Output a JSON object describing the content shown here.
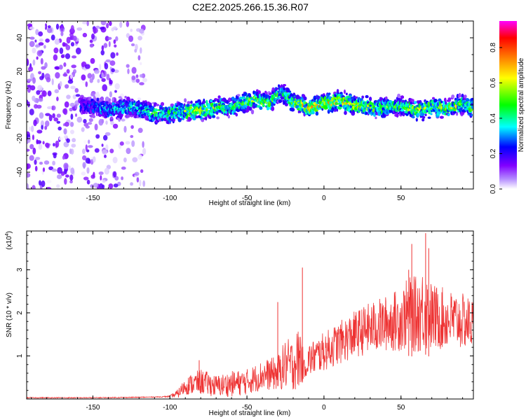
{
  "figure": {
    "title": "C2E2.2025.266.15.36.R07"
  },
  "chart_data": [
    {
      "type": "heatmap",
      "name": "spectrogram",
      "xlabel": "Height of straight line (km)",
      "ylabel": "Frequency (Hz)",
      "xlim": [
        -193,
        97
      ],
      "ylim": [
        -50,
        50
      ],
      "xticks": [
        -150,
        -100,
        -50,
        0,
        50
      ],
      "yticks": [
        -40,
        -20,
        0,
        20,
        40
      ],
      "colorbar": {
        "label": "Normalized spectral amplitude",
        "range": [
          0,
          0.95
        ],
        "ticks": [
          0.0,
          0.2,
          0.4,
          0.6,
          0.8
        ],
        "colormap": [
          "#ffffff",
          "#b48cff",
          "#8000ff",
          "#0000ff",
          "#00ffff",
          "#00ff00",
          "#ffff00",
          "#ff8000",
          "#ff0000",
          "#ff00ff"
        ]
      },
      "ridge": {
        "description_points_km": [
          -155,
          -140,
          -125,
          -110,
          -100,
          -80,
          -60,
          -45,
          -35,
          -28,
          -20,
          -10,
          0,
          10,
          20,
          30,
          40,
          50,
          60,
          70,
          80,
          90,
          97
        ],
        "frequency_hz": [
          0,
          -3,
          -1,
          -5,
          -5,
          -3,
          -1,
          3,
          1,
          8,
          2,
          -2,
          1,
          2,
          0,
          -1,
          -2,
          0,
          -3,
          -1,
          -2,
          0,
          -2
        ],
        "peak_amplitude": [
          0.35,
          0.45,
          0.5,
          0.55,
          0.6,
          0.75,
          0.6,
          0.7,
          0.65,
          0.5,
          0.7,
          0.8,
          0.85,
          0.8,
          0.8,
          0.7,
          0.65,
          0.6,
          0.75,
          0.7,
          0.7,
          0.65,
          0.6
        ]
      },
      "noise_region_km": [
        -193,
        -115
      ]
    },
    {
      "type": "line",
      "name": "snr",
      "xlabel": "Height of straight line (km)",
      "ylabel": "SNR (10 * v/v)",
      "yscale_label": "(x10",
      "yscale_exp": "4",
      "xlim": [
        -193,
        97
      ],
      "ylim": [
        0,
        3.9
      ],
      "xticks": [
        -150,
        -100,
        -50,
        0,
        50
      ],
      "yticks": [
        1,
        2,
        3
      ],
      "color": "#ee3333",
      "x": [
        -193,
        -150,
        -120,
        -105,
        -100,
        -95,
        -90,
        -85,
        -80,
        -70,
        -60,
        -50,
        -40,
        -30,
        -25,
        -20,
        -15,
        -13,
        -10,
        0,
        10,
        20,
        30,
        40,
        50,
        55,
        60,
        65,
        70,
        80,
        90,
        97
      ],
      "y": [
        0.03,
        0.03,
        0.04,
        0.05,
        0.06,
        0.12,
        0.3,
        0.35,
        0.4,
        0.3,
        0.35,
        0.4,
        0.55,
        0.6,
        0.8,
        0.8,
        1.0,
        0.7,
        0.9,
        1.1,
        1.3,
        1.5,
        1.65,
        1.75,
        1.85,
        2.0,
        1.95,
        2.1,
        1.9,
        1.85,
        1.8,
        1.75
      ],
      "amp": [
        0.01,
        0.01,
        0.01,
        0.01,
        0.02,
        0.1,
        0.2,
        0.25,
        0.3,
        0.25,
        0.3,
        0.3,
        0.35,
        0.4,
        0.6,
        0.6,
        0.8,
        0.2,
        0.4,
        0.45,
        0.5,
        0.55,
        0.6,
        0.65,
        0.75,
        0.85,
        0.9,
        1.0,
        0.8,
        0.7,
        0.65,
        0.6
      ],
      "spikes": [
        {
          "x": -81,
          "y": 0.9
        },
        {
          "x": -30,
          "y": 2.25
        },
        {
          "x": -14,
          "y": 3.05
        },
        {
          "x": 55,
          "y": 3.0
        },
        {
          "x": 57,
          "y": 3.6
        },
        {
          "x": 66,
          "y": 3.85
        },
        {
          "x": 68,
          "y": 3.5
        }
      ]
    }
  ]
}
